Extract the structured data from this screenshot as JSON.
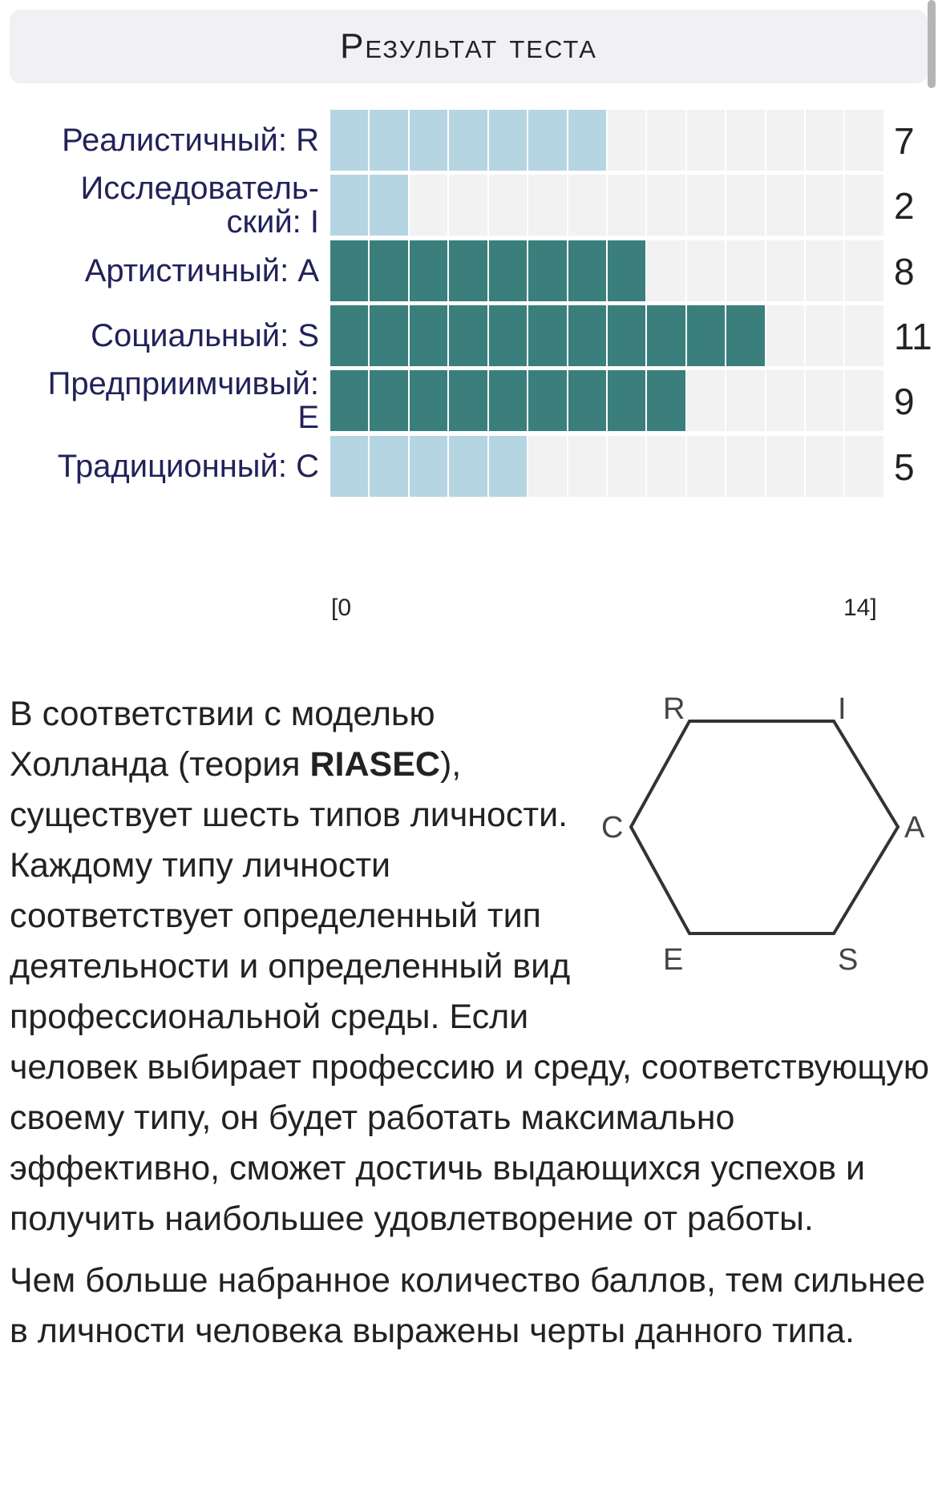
{
  "header": {
    "title": "Результат теста"
  },
  "chart_data": {
    "type": "bar",
    "orientation": "horizontal",
    "categories": [
      "Реалистичный: R",
      "Исследователь-ский: I",
      "Артистичный: A",
      "Социальный: S",
      "Предприимчивый: E",
      "Традиционный: C"
    ],
    "label_lines": [
      [
        "Реалистичный: R"
      ],
      [
        "Исследователь-",
        "ский: I"
      ],
      [
        "Артистичный: A"
      ],
      [
        "Социальный: S"
      ],
      [
        "Предприимчивый:",
        "E"
      ],
      [
        "Традиционный: C"
      ]
    ],
    "values": [
      7,
      2,
      8,
      11,
      9,
      5
    ],
    "highlight": [
      false,
      false,
      true,
      true,
      true,
      false
    ],
    "xlim": [
      0,
      14
    ],
    "axis_min_label": "[0",
    "axis_max_label": "14]",
    "colors": {
      "low": "#b6d5e3",
      "high": "#3a7f7c",
      "track": "#f2f2f2"
    }
  },
  "hexagon": {
    "labels": [
      "R",
      "I",
      "A",
      "S",
      "E",
      "C"
    ]
  },
  "description": {
    "p1_before": "В соответствии с моделью Холланда (теория ",
    "p1_bold": "RIASEC",
    "p1_after": "), существует шесть типов личности. Каждому типу личности соответствует определенный тип деятельности и определенный вид профессиональной среды. Если человек выбирает профессию и среду, соответствующую своему типу, он будет работать максимально эффективно, сможет достичь выдающихся успехов и получить наибольшее удовлетворение от работы.",
    "p2": "Чем больше набранное количество баллов, тем сильнее в личности человека выражены черты данного типа."
  }
}
